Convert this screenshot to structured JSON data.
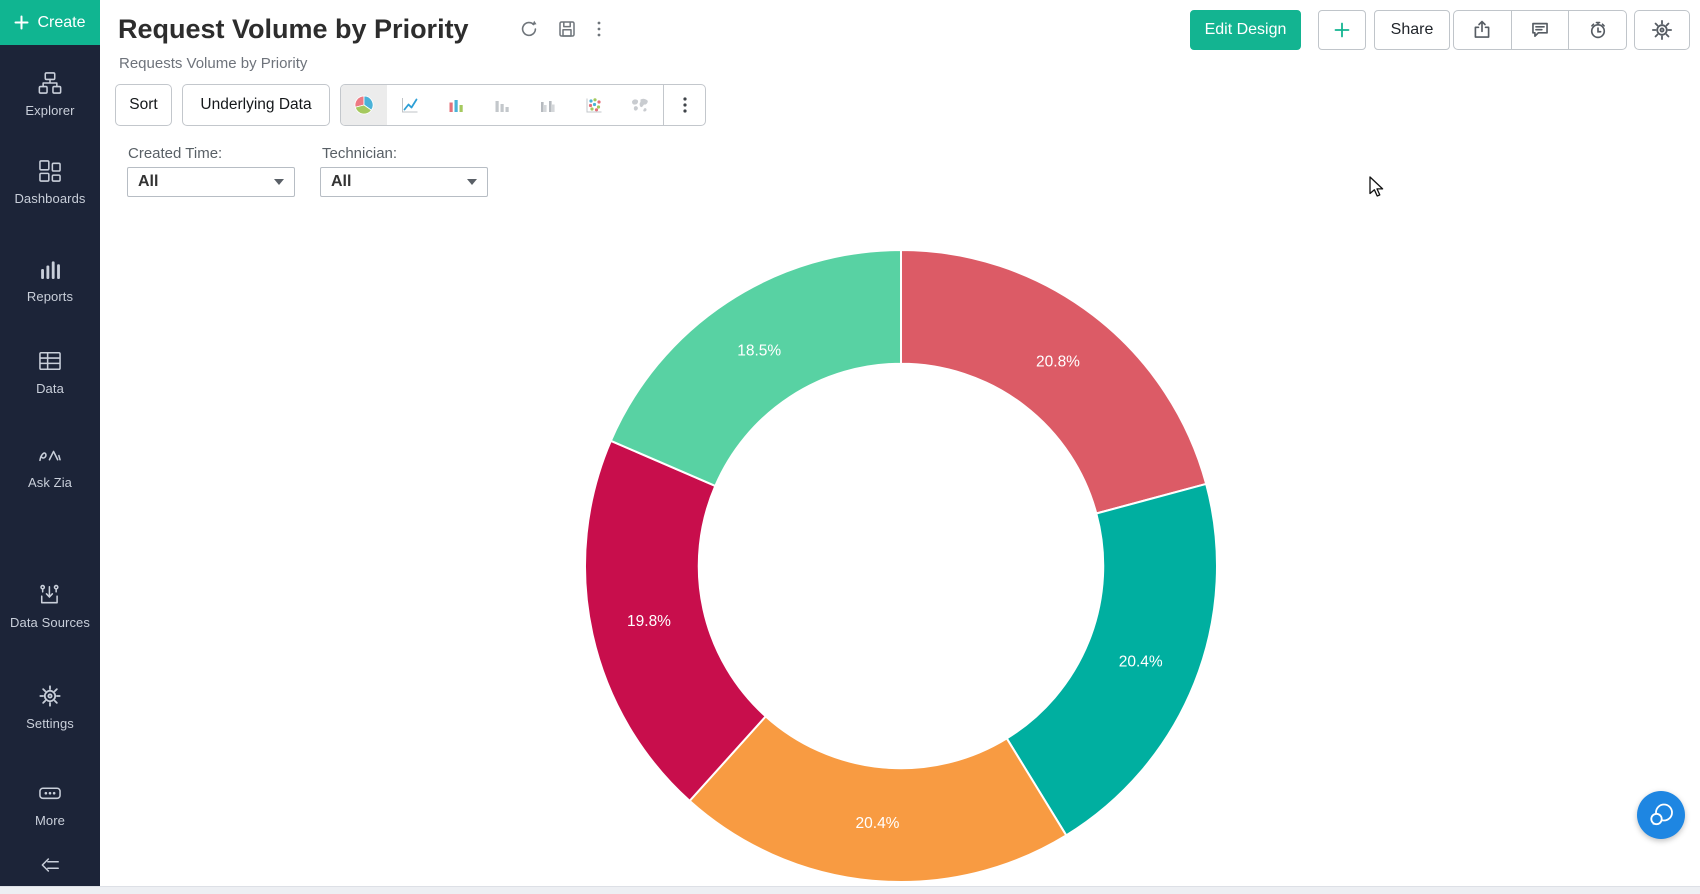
{
  "app": {
    "accent_color": "#13b491",
    "sidebar_color": "#1c2438",
    "fab_color": "#1e86e2"
  },
  "sidebar": {
    "create_label": "Create",
    "items": [
      {
        "label": "Explorer",
        "icon": "explorer-icon"
      },
      {
        "label": "Dashboards",
        "icon": "dashboards-icon"
      },
      {
        "label": "Reports",
        "icon": "reports-icon"
      },
      {
        "label": "Data",
        "icon": "data-table-icon"
      },
      {
        "label": "Ask Zia",
        "icon": "ask-zia-icon"
      },
      {
        "label": "Data Sources",
        "icon": "data-sources-icon"
      },
      {
        "label": "Settings",
        "icon": "settings-gear-icon"
      },
      {
        "label": "More",
        "icon": "more-ellipsis-icon"
      }
    ],
    "collapse_icon": "collapse-sidebar-icon"
  },
  "header": {
    "title": "Request Volume by Priority",
    "subtitle": "Requests Volume by Priority",
    "title_action_icons": [
      "refresh-icon",
      "save-icon",
      "kebab-menu-icon"
    ],
    "actions": {
      "edit_design_label": "Edit Design",
      "share_label": "Share",
      "add_button_icon": "plus-icon",
      "icon_buttons": [
        "export-icon",
        "comment-icon",
        "alert-clock-icon",
        "settings-gear-icon"
      ]
    }
  },
  "toolbar": {
    "sort_label": "Sort",
    "underlying_data_label": "Underlying Data",
    "chart_types": [
      "pie-chart",
      "line-chart",
      "bar-chart",
      "bar-chart-mono",
      "bar-chart-grouped",
      "scatter-plot",
      "world-map"
    ],
    "selected_chart_type": "pie-chart",
    "overflow_icon": "kebab-menu-icon"
  },
  "filters": [
    {
      "label": "Created Time:",
      "value": "All"
    },
    {
      "label": "Technician:",
      "value": "All"
    }
  ],
  "chart_data": {
    "type": "pie",
    "subtype": "donut",
    "title": "Request Volume by Priority",
    "values": [
      20.8,
      20.4,
      20.4,
      19.8,
      18.5
    ],
    "slice_labels": [
      "20.8%",
      "20.4%",
      "20.4%",
      "19.8%",
      "18.5%"
    ],
    "colors": [
      "#dc5b66",
      "#00afa0",
      "#f89b42",
      "#c80e4c",
      "#58d2a3"
    ],
    "start_angle_deg": 0,
    "direction": "clockwise",
    "inner_radius_ratio": 0.64,
    "legend": "none",
    "data_label_color": "#ffffff"
  }
}
